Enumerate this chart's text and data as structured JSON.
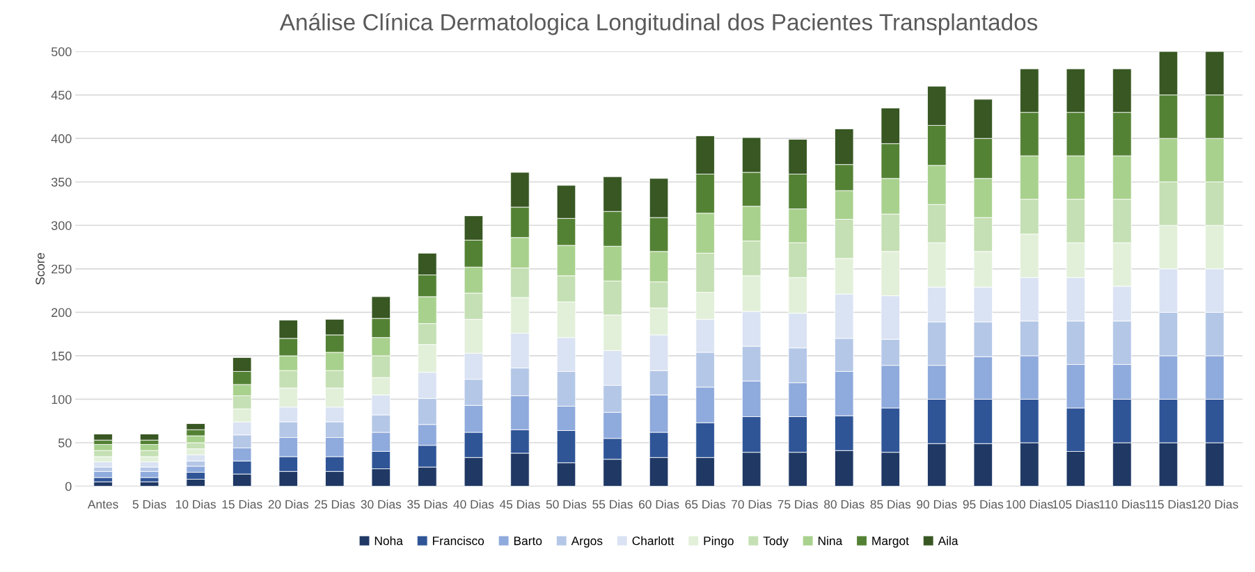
{
  "chart_data": {
    "type": "bar",
    "stacked": true,
    "title": "Análise Clínica Dermatologica Longitudinal dos Pacientes Transplantados",
    "ylabel": "Score",
    "categories": [
      "Antes",
      "5 Dias",
      "10 Dias",
      "15 Dias",
      "20 Dias",
      "25 Dias",
      "30 Dias",
      "35 Dias",
      "40 Dias",
      "45 Dias",
      "50 Dias",
      "55 Dias",
      "60 Dias",
      "65 Dias",
      "70 Dias",
      "75 Dias",
      "80 Dias",
      "85 Dias",
      "90 Dias",
      "95 Dias",
      "100 Dias",
      "105 Dias",
      "110 Dias",
      "115 Dias",
      "120 Dias"
    ],
    "series": [
      {
        "name": "Noha",
        "color": "#1f3864",
        "values": [
          5,
          5,
          8,
          14,
          17,
          17,
          20,
          22,
          33,
          38,
          27,
          31,
          33,
          33,
          39,
          39,
          41,
          39,
          49,
          49,
          50,
          40,
          50,
          50,
          50
        ]
      },
      {
        "name": "Francisco",
        "color": "#2f5597",
        "values": [
          5,
          5,
          8,
          15,
          17,
          17,
          20,
          25,
          29,
          27,
          37,
          24,
          29,
          40,
          41,
          41,
          40,
          51,
          51,
          51,
          50,
          50,
          50,
          50,
          50
        ]
      },
      {
        "name": "Barto",
        "color": "#8faadc",
        "values": [
          7,
          7,
          7,
          15,
          22,
          22,
          22,
          24,
          31,
          39,
          28,
          30,
          43,
          41,
          41,
          39,
          51,
          49,
          39,
          49,
          50,
          50,
          40,
          50,
          50
        ]
      },
      {
        "name": "Argos",
        "color": "#b4c7e7",
        "values": [
          5,
          5,
          6,
          15,
          18,
          18,
          20,
          30,
          30,
          32,
          40,
          31,
          28,
          40,
          40,
          40,
          38,
          30,
          50,
          40,
          40,
          50,
          50,
          50,
          50
        ]
      },
      {
        "name": "Charlott",
        "color": "#dae3f3",
        "values": [
          6,
          6,
          7,
          15,
          17,
          17,
          23,
          30,
          30,
          40,
          39,
          40,
          41,
          38,
          40,
          40,
          51,
          50,
          40,
          40,
          50,
          50,
          40,
          50,
          50
        ]
      },
      {
        "name": "Pingo",
        "color": "#e2f0d9",
        "values": [
          6,
          6,
          7,
          15,
          22,
          22,
          20,
          32,
          39,
          41,
          41,
          41,
          31,
          31,
          41,
          41,
          41,
          51,
          51,
          41,
          50,
          40,
          50,
          50,
          50
        ]
      },
      {
        "name": "Tody",
        "color": "#c5e0b4",
        "values": [
          7,
          7,
          7,
          15,
          20,
          20,
          25,
          24,
          30,
          34,
          30,
          39,
          30,
          45,
          40,
          40,
          45,
          43,
          44,
          39,
          40,
          50,
          50,
          50,
          50
        ]
      },
      {
        "name": "Nina",
        "color": "#a9d18e",
        "values": [
          7,
          7,
          8,
          13,
          17,
          21,
          21,
          31,
          30,
          35,
          35,
          40,
          35,
          46,
          40,
          39,
          33,
          41,
          45,
          45,
          50,
          50,
          50,
          50,
          50
        ]
      },
      {
        "name": "Margot",
        "color": "#548235",
        "values": [
          5,
          5,
          7,
          15,
          20,
          20,
          22,
          25,
          31,
          35,
          31,
          40,
          39,
          45,
          39,
          40,
          30,
          40,
          46,
          46,
          50,
          50,
          50,
          50,
          50
        ]
      },
      {
        "name": "Aila",
        "color": "#385723",
        "values": [
          7,
          7,
          7,
          16,
          21,
          18,
          25,
          25,
          28,
          40,
          38,
          40,
          45,
          44,
          40,
          40,
          41,
          41,
          45,
          45,
          50,
          50,
          50,
          50,
          50
        ]
      }
    ],
    "ylim": [
      0,
      500
    ],
    "yticks": [
      0,
      50,
      100,
      150,
      200,
      250,
      300,
      350,
      400,
      450,
      500
    ],
    "grid": "y",
    "legend": "bottom"
  }
}
